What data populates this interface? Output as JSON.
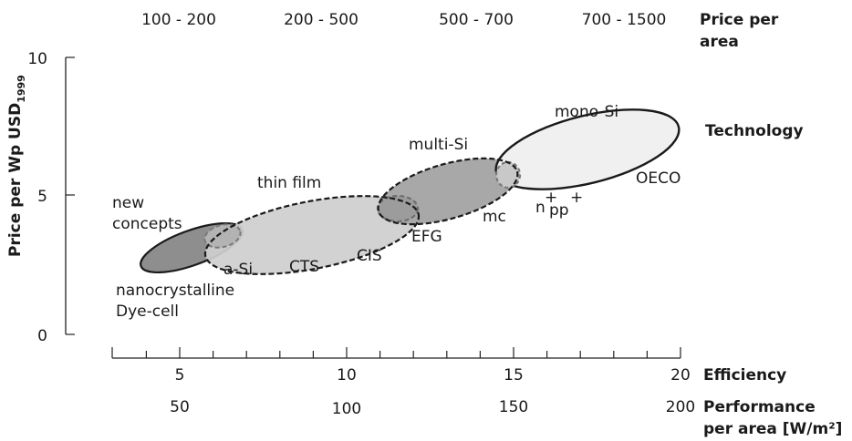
{
  "chart_data": {
    "type": "scatter",
    "title": "",
    "ylabel_main": "Price per Wp USD",
    "ylabel_sub": "1999",
    "xlabel_efficiency": "Efficiency",
    "xlabel_performance_line1": "Performance",
    "xlabel_performance_line2": "per area [W/m²]",
    "top_axis_label_line1": "Price per",
    "top_axis_label_line2": "area",
    "technology_label": "Technology",
    "y_ticks": [
      "0",
      "5",
      "10"
    ],
    "ylim": [
      0,
      10
    ],
    "xlim": [
      3,
      20
    ],
    "efficiency_ticks": [
      "5",
      "10",
      "15",
      "20"
    ],
    "performance_ticks": [
      "50",
      "100",
      "150",
      "200"
    ],
    "price_per_area_ranges": [
      "100 - 200",
      "200 - 500",
      "500 - 700",
      "700 - 1500"
    ],
    "regions": [
      {
        "group": "new concepts",
        "fill": "#8d8d8d",
        "efficiency_center": 5.2,
        "price_center": 3.2
      },
      {
        "group": "thin film",
        "fill": "#cfcfcf",
        "efficiency_center": 9.3,
        "price_center": 4.0
      },
      {
        "group": "multi-Si",
        "fill": "#a8a8a8",
        "efficiency_center": 13.0,
        "price_center": 5.0
      },
      {
        "group": "mono-Si",
        "fill": "#efefef",
        "efficiency_center": 17.0,
        "price_center": 6.4
      }
    ],
    "annotations": {
      "new_concepts_line1": "new",
      "new_concepts_line2": "concepts",
      "thin_film": "thin film",
      "multi_si": "multi-Si",
      "mono_si": "mono-Si",
      "a_si": "a-Si",
      "cts": "CTS",
      "cis": "CIS",
      "efg": "EFG",
      "mc": "mc",
      "oeco": "OECO",
      "n_label": "n",
      "pp_label": "pp",
      "plus_sign": "+",
      "nanocrystalline": "nanocrystalline",
      "dye_cell": "Dye-cell"
    }
  }
}
